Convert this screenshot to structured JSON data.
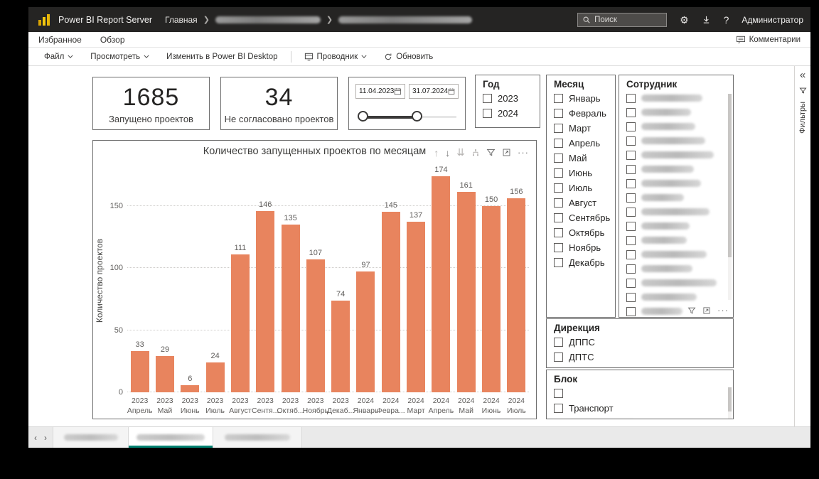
{
  "app_bar": {
    "product": "Power BI Report Server",
    "breadcrumb": {
      "home": "Главная",
      "redacted_segments": 2
    },
    "search": {
      "placeholder": "Поиск"
    },
    "gear_glyph": "⚙",
    "help_glyph": "?",
    "user": "Администратор"
  },
  "menu_bar": {
    "favorites": "Избранное",
    "browse": "Обзор",
    "comments": "Комментарии"
  },
  "toolbar": {
    "file": "Файл",
    "view": "Просмотреть",
    "edit_in_desktop": "Изменить в Power BI Desktop",
    "explorer": "Проводник",
    "refresh": "Обновить"
  },
  "cards": {
    "launched": {
      "value": "1685",
      "label": "Запущено проектов"
    },
    "not_agreed": {
      "value": "34",
      "label": "Не согласовано проектов"
    }
  },
  "date_slicer": {
    "start_date": "11.04.2023",
    "end_date": "31.07.2024"
  },
  "slicers": {
    "year": {
      "title": "Год",
      "options": [
        "2023",
        "2024"
      ]
    },
    "month": {
      "title": "Месяц",
      "options": [
        "Январь",
        "Февраль",
        "Март",
        "Апрель",
        "Май",
        "Июнь",
        "Июль",
        "Август",
        "Сентябрь",
        "Октябрь",
        "Ноябрь",
        "Декабрь"
      ]
    },
    "employee": {
      "title": "Сотрудник",
      "redacted_items": 16,
      "partial_item": true
    },
    "direction": {
      "title": "Дирекция",
      "options": [
        "ДППС",
        "ДПТС"
      ]
    },
    "block": {
      "title": "Блок",
      "options": [
        "",
        "Транспорт"
      ],
      "partial_redacted_item": true
    }
  },
  "filter_pane": {
    "collapse_glyph": "«",
    "label": "Фильтры"
  },
  "page_tabs": {
    "count": 3,
    "active_index": 1,
    "prev_glyph": "‹",
    "next_glyph": "›"
  },
  "chart_tools": {
    "drill_up": "↑",
    "drill_down": "↓",
    "next_level": "⇊",
    "ellipsis": "···"
  },
  "chart_data": {
    "type": "bar",
    "title": "Количество запущенных проектов по месяцам",
    "xlabel": "",
    "ylabel": "Количество проектов",
    "ylim": [
      0,
      180
    ],
    "yticks": [
      0,
      50,
      100,
      150
    ],
    "grid": "horizontal-dotted",
    "legend": "none",
    "bar_color": "#E8845E",
    "categories": [
      [
        "2023",
        "Апрель"
      ],
      [
        "2023",
        "Май"
      ],
      [
        "2023",
        "Июнь"
      ],
      [
        "2023",
        "Июль"
      ],
      [
        "2023",
        "Август"
      ],
      [
        "2023",
        "Сентя..."
      ],
      [
        "2023",
        "Октяб..."
      ],
      [
        "2023",
        "Ноябрь"
      ],
      [
        "2023",
        "Декаб..."
      ],
      [
        "2024",
        "Январь"
      ],
      [
        "2024",
        "Февра..."
      ],
      [
        "2024",
        "Март"
      ],
      [
        "2024",
        "Апрель"
      ],
      [
        "2024",
        "Май"
      ],
      [
        "2024",
        "Июнь"
      ],
      [
        "2024",
        "Июль"
      ]
    ],
    "values": [
      33,
      29,
      6,
      24,
      111,
      146,
      135,
      107,
      74,
      97,
      145,
      137,
      174,
      161,
      150,
      156
    ]
  }
}
